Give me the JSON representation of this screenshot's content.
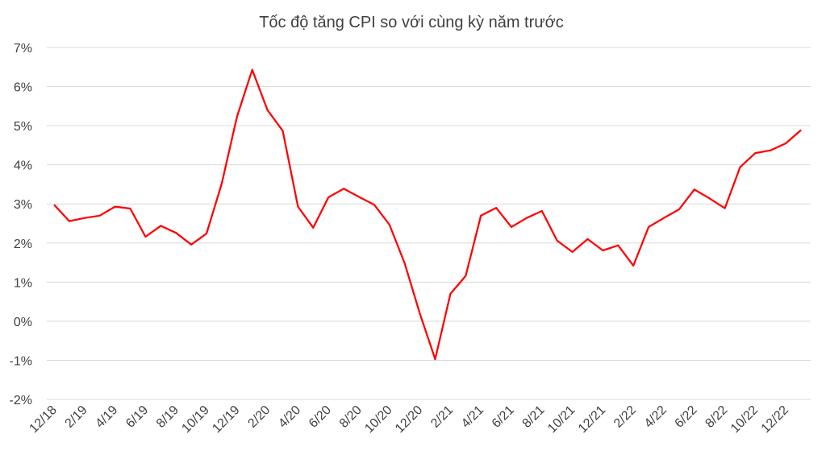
{
  "chart_data": {
    "type": "line",
    "title": "Tốc độ tăng CPI so với cùng kỳ năm trước",
    "xlabel": "",
    "ylabel": "",
    "ylim": [
      -2,
      7
    ],
    "y_ticks": [
      7,
      6,
      5,
      4,
      3,
      2,
      1,
      0,
      -1,
      -2
    ],
    "y_tick_labels": [
      "7%",
      "6%",
      "5%",
      "4%",
      "3%",
      "2%",
      "1%",
      "0%",
      "-1%",
      "-2%"
    ],
    "grid": true,
    "legend": "none",
    "x_tick_labels": [
      "12/18",
      "2/19",
      "4/19",
      "6/19",
      "8/19",
      "10/19",
      "12/19",
      "2/20",
      "4/20",
      "6/20",
      "8/20",
      "10/20",
      "12/20",
      "2/21",
      "4/21",
      "6/21",
      "8/21",
      "10/21",
      "12/21",
      "2/22",
      "4/22",
      "6/22",
      "8/22",
      "10/22",
      "12/22"
    ],
    "series": [
      {
        "color": "#ff0000",
        "values": [
          2.98,
          2.56,
          2.64,
          2.7,
          2.93,
          2.88,
          2.16,
          2.44,
          2.26,
          1.96,
          2.24,
          3.52,
          5.23,
          6.43,
          5.4,
          4.87,
          2.93,
          2.39,
          3.17,
          3.39,
          3.18,
          2.98,
          2.47,
          1.48,
          0.19,
          -0.97,
          0.7,
          1.16,
          2.7,
          2.9,
          2.41,
          2.64,
          2.82,
          2.06,
          1.77,
          2.1,
          1.81,
          1.94,
          1.42,
          2.41,
          2.64,
          2.86,
          3.37,
          3.14,
          2.89,
          3.94,
          4.3,
          4.37,
          4.55,
          4.89
        ]
      }
    ]
  }
}
